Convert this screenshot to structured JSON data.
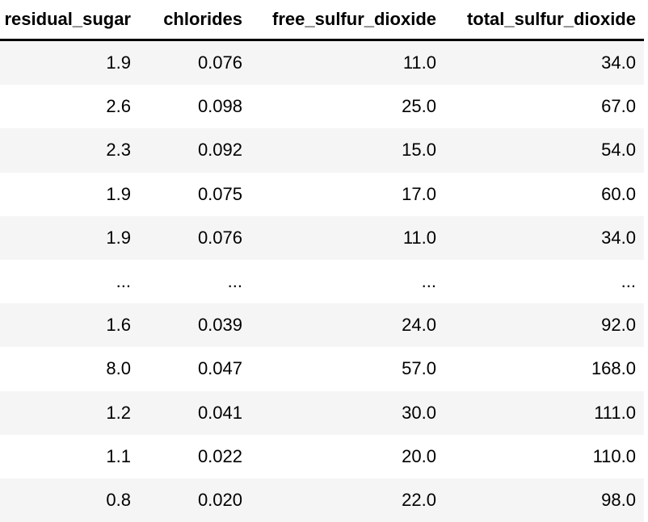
{
  "chart_data": {
    "type": "table",
    "title": "",
    "columns": [
      "residual_sugar",
      "chlorides",
      "free_sulfur_dioxide",
      "total_sulfur_dioxide"
    ],
    "rows": [
      [
        "1.9",
        "0.076",
        "11.0",
        "34.0"
      ],
      [
        "2.6",
        "0.098",
        "25.0",
        "67.0"
      ],
      [
        "2.3",
        "0.092",
        "15.0",
        "54.0"
      ],
      [
        "1.9",
        "0.075",
        "17.0",
        "60.0"
      ],
      [
        "1.9",
        "0.076",
        "11.0",
        "34.0"
      ],
      [
        "...",
        "...",
        "...",
        "..."
      ],
      [
        "1.6",
        "0.039",
        "24.0",
        "92.0"
      ],
      [
        "8.0",
        "0.047",
        "57.0",
        "168.0"
      ],
      [
        "1.2",
        "0.041",
        "30.0",
        "111.0"
      ],
      [
        "1.1",
        "0.022",
        "20.0",
        "110.0"
      ],
      [
        "0.8",
        "0.020",
        "22.0",
        "98.0"
      ]
    ],
    "truncation_row_index": 5,
    "layout": {
      "value_alignment": "right",
      "header_alignment": "right",
      "row_striping": "odd-rows-shaded",
      "grid": "off"
    }
  },
  "style": {
    "stripe_color": "#f5f5f5",
    "header_border_color": "#000000",
    "text_color": "#000000",
    "background_color": "#ffffff"
  }
}
